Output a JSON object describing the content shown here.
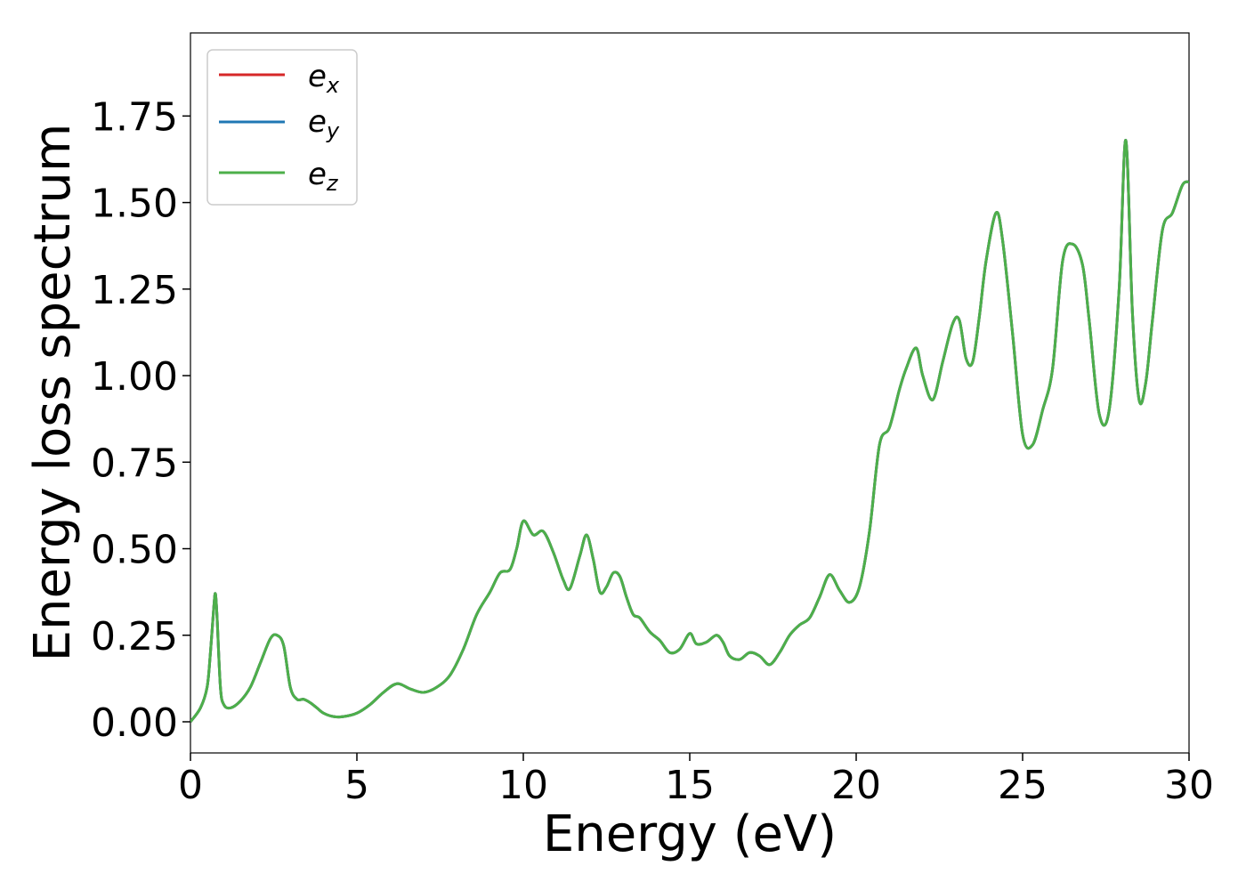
{
  "chart_data": {
    "type": "line",
    "title": "",
    "xlabel": "Energy (eV)",
    "ylabel": "Energy loss spectrum",
    "xlim": [
      0,
      30
    ],
    "ylim": [
      -0.09,
      1.99
    ],
    "xticks": [
      0,
      5,
      10,
      15,
      20,
      25,
      30
    ],
    "xtick_labels": [
      "0",
      "5",
      "10",
      "15",
      "20",
      "25",
      "30"
    ],
    "yticks": [
      0,
      0.25,
      0.5,
      0.75,
      1.0,
      1.25,
      1.5,
      1.75
    ],
    "ytick_labels": [
      "0.00",
      "0.25",
      "0.50",
      "0.75",
      "1.00",
      "1.25",
      "1.50",
      "1.75"
    ],
    "grid": false,
    "legend_position": "top-left",
    "x": [
      0,
      0.3,
      0.5,
      0.6,
      0.7,
      0.75,
      0.8,
      0.9,
      1.0,
      1.2,
      1.5,
      1.8,
      2.1,
      2.4,
      2.6,
      2.8,
      3.0,
      3.2,
      3.4,
      3.6,
      3.8,
      4.0,
      4.3,
      4.6,
      5.0,
      5.4,
      5.8,
      6.2,
      6.6,
      7.0,
      7.4,
      7.8,
      8.2,
      8.6,
      9.0,
      9.3,
      9.6,
      9.8,
      10.0,
      10.3,
      10.6,
      10.9,
      11.2,
      11.4,
      11.7,
      11.9,
      12.1,
      12.3,
      12.5,
      12.7,
      12.9,
      13.1,
      13.3,
      13.5,
      13.8,
      14.1,
      14.4,
      14.7,
      15.0,
      15.2,
      15.5,
      15.8,
      16.0,
      16.2,
      16.5,
      16.8,
      17.1,
      17.4,
      17.7,
      18.0,
      18.3,
      18.6,
      18.9,
      19.2,
      19.5,
      19.8,
      20.1,
      20.4,
      20.7,
      21.0,
      21.3,
      21.5,
      21.8,
      22.0,
      22.3,
      22.6,
      22.9,
      23.1,
      23.3,
      23.5,
      23.7,
      23.9,
      24.2,
      24.4,
      24.7,
      25.0,
      25.3,
      25.6,
      25.9,
      26.2,
      26.5,
      26.8,
      27.0,
      27.3,
      27.6,
      27.9,
      28.1,
      28.3,
      28.5,
      28.7,
      28.9,
      29.2,
      29.5,
      29.8,
      30.0
    ],
    "series": [
      {
        "name": "e_x",
        "color": "#d62728"
      },
      {
        "name": "e_y",
        "color": "#1f77b4"
      },
      {
        "name": "e_z",
        "color": "#4daf4a"
      }
    ],
    "values": [
      0.0,
      0.04,
      0.1,
      0.2,
      0.33,
      0.37,
      0.3,
      0.1,
      0.05,
      0.04,
      0.06,
      0.1,
      0.17,
      0.24,
      0.25,
      0.22,
      0.1,
      0.065,
      0.065,
      0.055,
      0.04,
      0.025,
      0.015,
      0.015,
      0.025,
      0.05,
      0.085,
      0.11,
      0.095,
      0.085,
      0.1,
      0.135,
      0.21,
      0.31,
      0.375,
      0.43,
      0.44,
      0.5,
      0.58,
      0.54,
      0.55,
      0.49,
      0.41,
      0.385,
      0.48,
      0.54,
      0.47,
      0.375,
      0.39,
      0.43,
      0.42,
      0.36,
      0.31,
      0.3,
      0.26,
      0.235,
      0.2,
      0.21,
      0.255,
      0.225,
      0.23,
      0.25,
      0.23,
      0.19,
      0.18,
      0.2,
      0.19,
      0.165,
      0.2,
      0.25,
      0.28,
      0.3,
      0.36,
      0.425,
      0.38,
      0.345,
      0.39,
      0.55,
      0.8,
      0.85,
      0.96,
      1.02,
      1.08,
      1.0,
      0.93,
      1.04,
      1.15,
      1.16,
      1.05,
      1.04,
      1.17,
      1.33,
      1.47,
      1.39,
      1.12,
      0.83,
      0.8,
      0.9,
      1.02,
      1.33,
      1.38,
      1.32,
      1.16,
      0.89,
      0.9,
      1.25,
      1.68,
      1.18,
      0.93,
      0.98,
      1.16,
      1.42,
      1.47,
      1.55,
      1.56
    ]
  }
}
